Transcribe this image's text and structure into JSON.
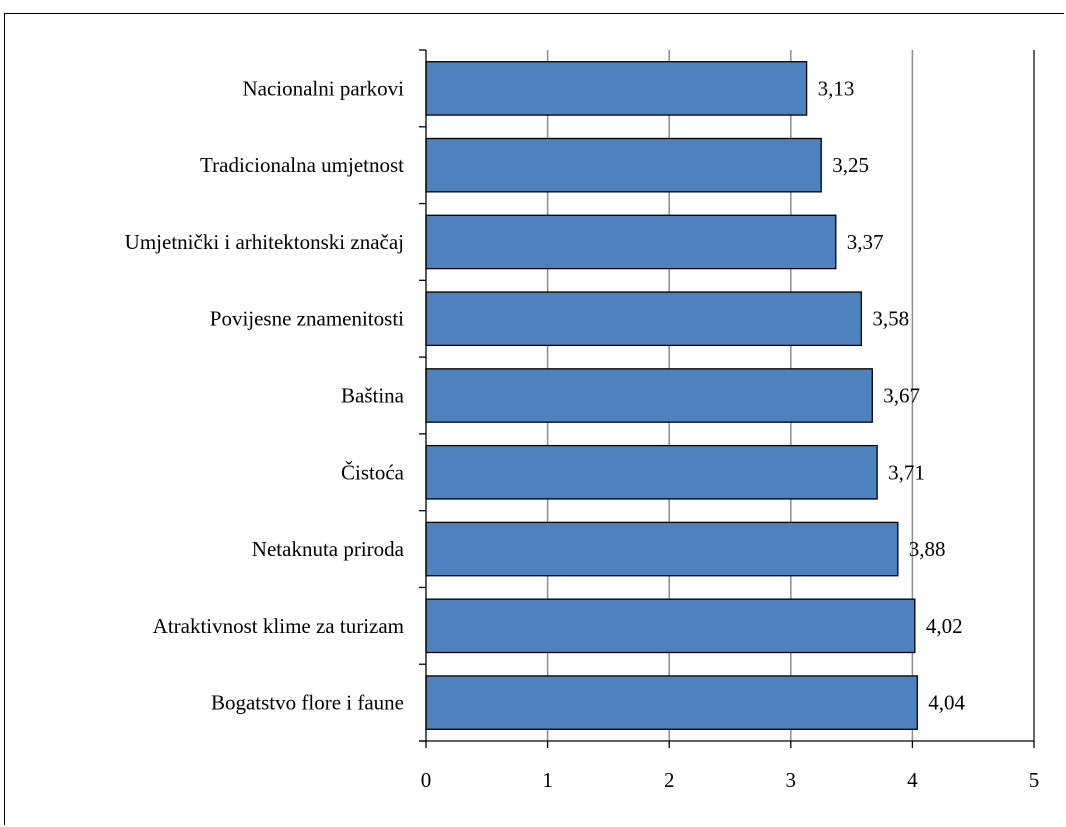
{
  "chart_data": {
    "type": "bar",
    "orientation": "horizontal",
    "categories": [
      "Nacionalni parkovi",
      "Tradicionalna umjetnost",
      "Umjetnički i arhitektonski značaj",
      "Povijesne znamenitosti",
      "Baština",
      "Čistoća",
      "Netaknuta priroda",
      "Atraktivnost klime za turizam",
      "Bogatstvo flore i faune"
    ],
    "values": [
      3.13,
      3.25,
      3.37,
      3.58,
      3.67,
      3.71,
      3.88,
      4.02,
      4.04
    ],
    "value_labels": [
      "3,13",
      "3,25",
      "3,37",
      "3,58",
      "3,67",
      "3,71",
      "3,88",
      "4,02",
      "4,04"
    ],
    "x_ticks": [
      "0",
      "1",
      "2",
      "3",
      "4",
      "5"
    ],
    "xlim": [
      0,
      5
    ],
    "grid": "vertical",
    "legend": "none",
    "bar_color": "#4f81bd",
    "title": "",
    "xlabel": "",
    "ylabel": ""
  }
}
